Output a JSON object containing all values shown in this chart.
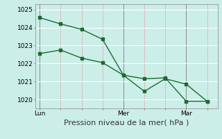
{
  "xlabel": "Pression niveau de la mer( hPa )",
  "bg_color": "#cceee8",
  "grid_color_v": "#ddaaaa",
  "grid_color_h": "#ffffff",
  "line_color": "#1a6b30",
  "marker_color": "#1a6b30",
  "ylim": [
    1019.5,
    1025.3
  ],
  "yticks": [
    1020,
    1021,
    1022,
    1023,
    1024,
    1025
  ],
  "xtick_labels": [
    "Lun",
    "",
    "",
    "",
    "Mer",
    "",
    "",
    "Mar",
    ""
  ],
  "xtick_positions": [
    0,
    1,
    2,
    3,
    4,
    5,
    6,
    7,
    8
  ],
  "vline_major": [
    0,
    4,
    7
  ],
  "vline_minor": [
    1,
    2,
    3,
    5,
    6,
    8
  ],
  "line1_x": [
    0,
    1,
    2,
    3,
    4,
    5,
    6,
    7,
    8
  ],
  "line1_y": [
    1024.55,
    1024.2,
    1023.9,
    1023.35,
    1021.35,
    1020.45,
    1021.15,
    1020.85,
    1019.9
  ],
  "line2_x": [
    0,
    1,
    2,
    3,
    4,
    5,
    6,
    7,
    8
  ],
  "line2_y": [
    1022.55,
    1022.75,
    1022.3,
    1022.05,
    1021.35,
    1021.15,
    1021.2,
    1019.9,
    1019.9
  ],
  "marker_size": 3,
  "linewidth": 1.0,
  "xlabel_fontsize": 8,
  "tick_fontsize": 6.5
}
